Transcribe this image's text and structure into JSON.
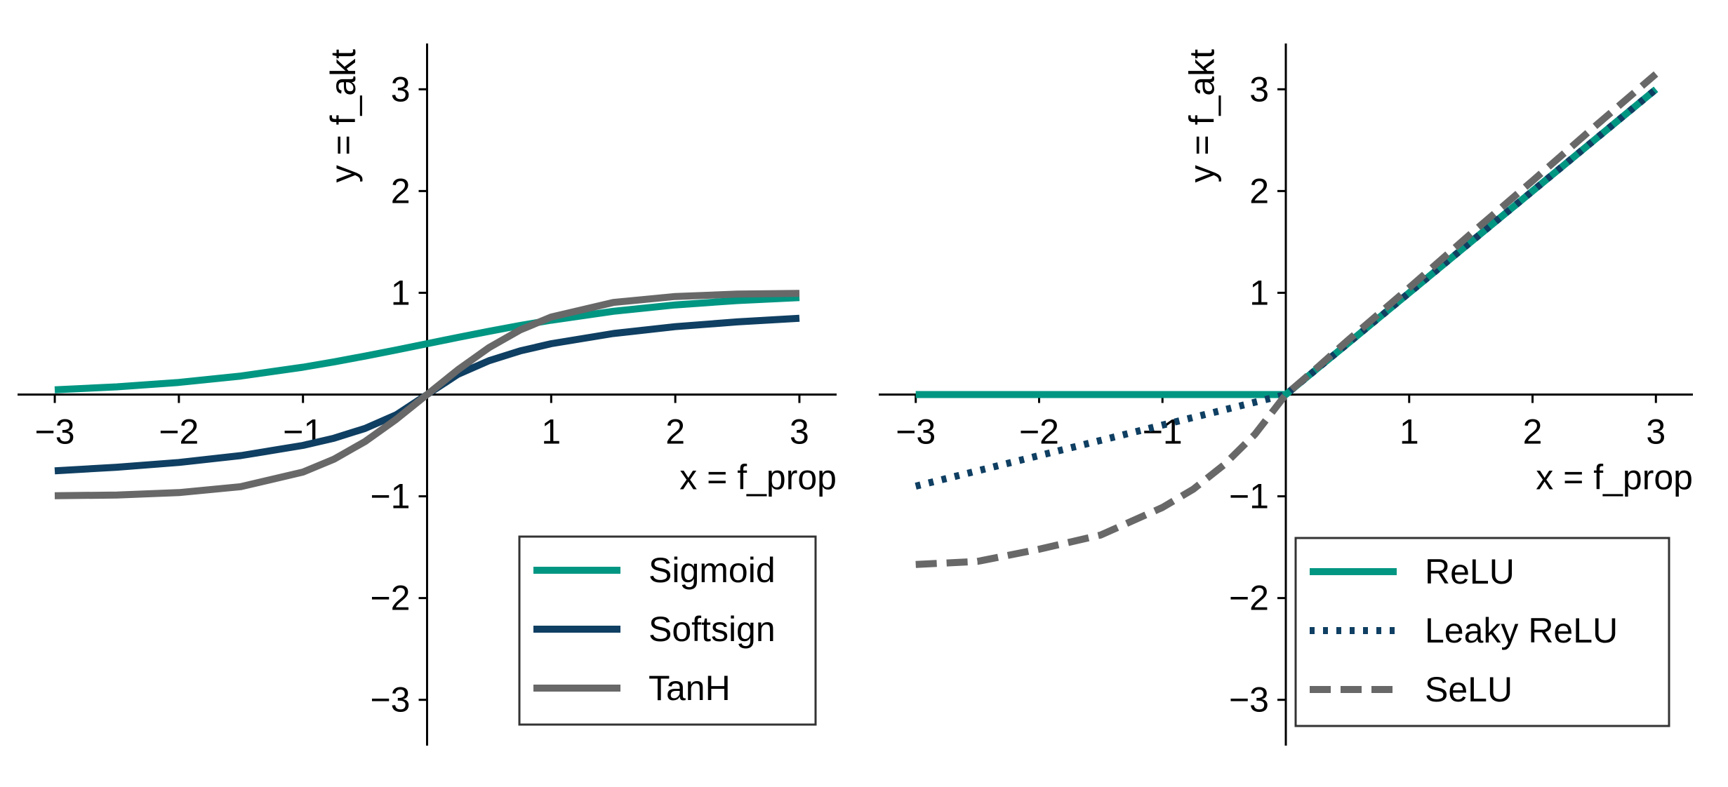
{
  "chart_data": [
    {
      "type": "line",
      "xlabel": "x = f_prop",
      "ylabel": "y = f_akt",
      "xlim": [
        -3.3,
        3.3
      ],
      "ylim": [
        -3.45,
        3.45
      ],
      "xticks": [
        -3,
        -2,
        -1,
        1,
        2,
        3
      ],
      "yticks": [
        -3,
        -2,
        -1,
        1,
        2,
        3
      ],
      "legend_position": "lower-right",
      "x": [
        -3,
        -2.5,
        -2,
        -1.5,
        -1,
        -0.75,
        -0.5,
        -0.25,
        0,
        0.25,
        0.5,
        0.75,
        1,
        1.5,
        2,
        2.5,
        3
      ],
      "series": [
        {
          "name": "Sigmoid",
          "color": "#009682",
          "style": "solid",
          "values": [
            0.047,
            0.076,
            0.119,
            0.182,
            0.269,
            0.321,
            0.378,
            0.438,
            0.5,
            0.562,
            0.622,
            0.679,
            0.731,
            0.818,
            0.881,
            0.924,
            0.953
          ]
        },
        {
          "name": "Softsign",
          "color": "#0f3f62",
          "style": "solid",
          "values": [
            -0.75,
            -0.714,
            -0.667,
            -0.6,
            -0.5,
            -0.429,
            -0.333,
            -0.2,
            0,
            0.2,
            0.333,
            0.429,
            0.5,
            0.6,
            0.667,
            0.714,
            0.75
          ]
        },
        {
          "name": "TanH",
          "color": "#686868",
          "style": "solid",
          "values": [
            -0.995,
            -0.987,
            -0.964,
            -0.905,
            -0.762,
            -0.635,
            -0.462,
            -0.245,
            0,
            0.245,
            0.462,
            0.635,
            0.762,
            0.905,
            0.964,
            0.987,
            0.995
          ]
        }
      ]
    },
    {
      "type": "line",
      "xlabel": "x = f_prop",
      "ylabel": "y = f_akt",
      "xlim": [
        -3.3,
        3.3
      ],
      "ylim": [
        -3.45,
        3.45
      ],
      "xticks": [
        -3,
        -2,
        -1,
        1,
        2,
        3
      ],
      "yticks": [
        -3,
        -2,
        -1,
        1,
        2,
        3
      ],
      "legend_position": "lower-right",
      "x": [
        -3,
        -2.5,
        -2,
        -1.5,
        -1,
        -0.75,
        -0.5,
        -0.25,
        0,
        0.25,
        0.5,
        0.75,
        1,
        1.5,
        2,
        2.5,
        3
      ],
      "series": [
        {
          "name": "ReLU",
          "color": "#009682",
          "style": "solid",
          "values": [
            0,
            0,
            0,
            0,
            0,
            0,
            0,
            0,
            0,
            0.25,
            0.5,
            0.75,
            1,
            1.5,
            2,
            2.5,
            3
          ]
        },
        {
          "name": "Leaky ReLU",
          "color": "#0f3f62",
          "style": "dotted",
          "values": [
            -0.9,
            -0.75,
            -0.6,
            -0.45,
            -0.3,
            -0.225,
            -0.15,
            -0.075,
            0,
            0.25,
            0.5,
            0.75,
            1,
            1.5,
            2,
            2.5,
            3
          ]
        },
        {
          "name": "SeLU",
          "color": "#686868",
          "style": "dashed",
          "values": [
            -1.67,
            -1.64,
            -1.52,
            -1.38,
            -1.11,
            -0.93,
            -0.69,
            -0.39,
            0,
            0.26,
            0.53,
            0.79,
            1.05,
            1.58,
            2.1,
            2.63,
            3.15
          ]
        }
      ]
    }
  ]
}
